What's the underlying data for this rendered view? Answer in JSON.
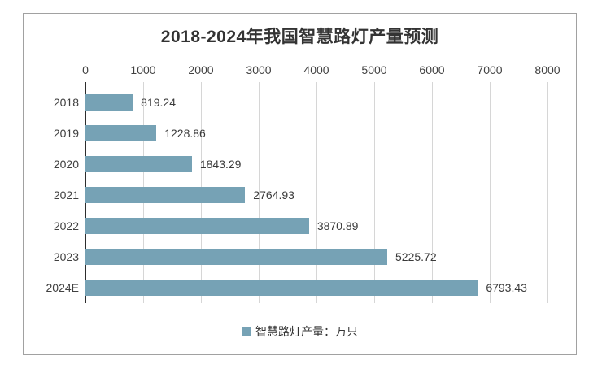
{
  "chart_data": {
    "type": "bar",
    "orientation": "horizontal",
    "title": "2018-2024年我国智慧路灯产量预测",
    "categories": [
      "2018",
      "2019",
      "2020",
      "2021",
      "2022",
      "2023",
      "2024E"
    ],
    "values": [
      819.24,
      1228.86,
      1843.29,
      2764.93,
      3870.89,
      5225.72,
      6793.43
    ],
    "data_labels": [
      "819.24",
      "1228.86",
      "1843.29",
      "2764.93",
      "3870.89",
      "5225.72",
      "6793.43"
    ],
    "series_name": "智慧路灯产量：万只",
    "value_axis": {
      "position": "top",
      "min": 0,
      "max": 8000,
      "tick_interval": 1000,
      "ticks": [
        "0",
        "1000",
        "2000",
        "3000",
        "4000",
        "5000",
        "6000",
        "7000",
        "8000"
      ]
    },
    "grid": true,
    "legend_position": "bottom",
    "colors": {
      "bar": "#76a2b5",
      "gridline": "#d6d6d6",
      "axis_line": "#2d2d2d",
      "frame_border": "#a1a1a1",
      "title_text": "#333333",
      "label_text": "#404040"
    }
  }
}
